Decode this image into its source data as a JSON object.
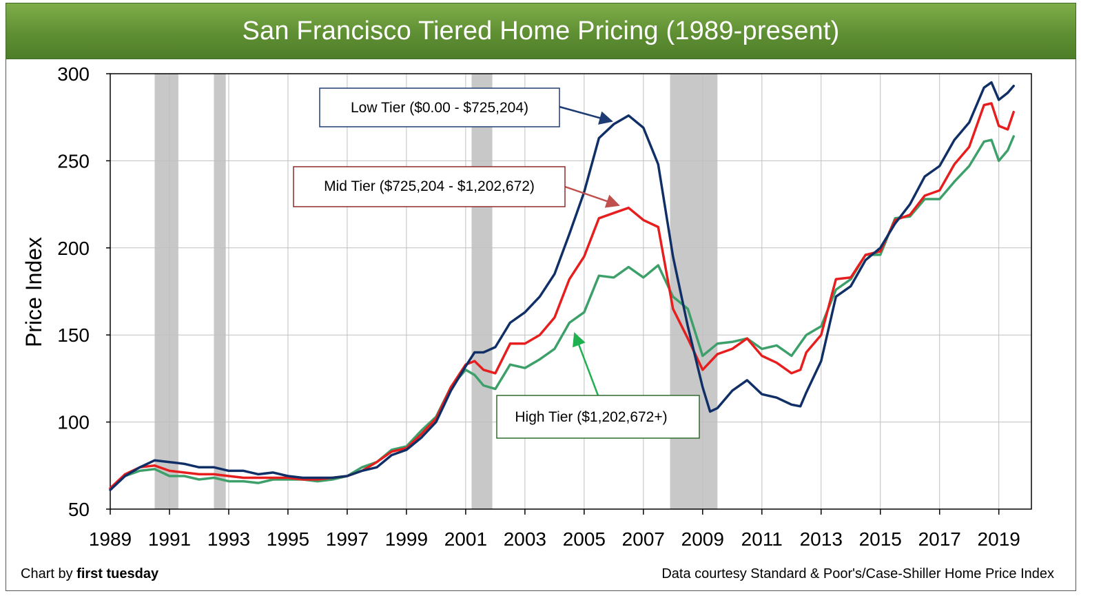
{
  "header": {
    "title": "San Francisco Tiered Home Pricing (1989-present)"
  },
  "footer": {
    "credit_prefix": "Chart by ",
    "credit_name": "first tuesday",
    "source": "Data courtesy Standard & Poor's/Case-Shiller Home Price Index"
  },
  "colors": {
    "title_bar": "#5f8f33",
    "low": "#0f2f66",
    "mid": "#e61e1e",
    "high": "#3da06a",
    "recession": "#c8c8c8",
    "grid": "#bfbfbf",
    "low_box_border": "#1f3b73",
    "mid_box_border": "#8b2a2a",
    "high_box_border": "#2f6b2f"
  },
  "chart_data": {
    "type": "line",
    "title": "San Francisco Tiered Home Pricing (1989-present)",
    "xlabel": "",
    "ylabel": "Price Index",
    "xlim": [
      1989,
      2020.1
    ],
    "ylim": [
      50,
      300
    ],
    "x_ticks": [
      "1989",
      "1991",
      "1993",
      "1995",
      "1997",
      "1999",
      "2001",
      "2003",
      "2005",
      "2007",
      "2009",
      "2011",
      "2013",
      "2015",
      "2017",
      "2019"
    ],
    "y_ticks": [
      "50",
      "100",
      "150",
      "200",
      "250",
      "300"
    ],
    "grid": true,
    "recessions": [
      [
        1990.5,
        1991.3
      ],
      [
        1992.5,
        1992.9
      ],
      [
        2001.2,
        2001.9
      ],
      [
        2007.9,
        2009.5
      ]
    ],
    "callouts": [
      {
        "series": "low",
        "label": "Low Tier ($0.00 - $725,204)"
      },
      {
        "series": "mid",
        "label": "Mid Tier ($725,204 - $1,202,672)"
      },
      {
        "series": "high",
        "label": "High Tier ($1,202,672+)"
      }
    ],
    "series": [
      {
        "name": "Low Tier ($0.00 - $725,204)",
        "key": "low",
        "points": [
          [
            1989,
            61
          ],
          [
            1989.5,
            69
          ],
          [
            1990,
            74
          ],
          [
            1990.5,
            78
          ],
          [
            1991,
            77
          ],
          [
            1991.5,
            76
          ],
          [
            1992,
            74
          ],
          [
            1992.5,
            74
          ],
          [
            1993,
            72
          ],
          [
            1993.5,
            72
          ],
          [
            1994,
            70
          ],
          [
            1994.5,
            71
          ],
          [
            1995,
            69
          ],
          [
            1995.5,
            68
          ],
          [
            1996,
            68
          ],
          [
            1996.5,
            68
          ],
          [
            1997,
            69
          ],
          [
            1997.5,
            72
          ],
          [
            1998,
            74
          ],
          [
            1998.5,
            81
          ],
          [
            1999,
            84
          ],
          [
            1999.5,
            91
          ],
          [
            2000,
            100
          ],
          [
            2000.5,
            118
          ],
          [
            2001,
            132
          ],
          [
            2001.3,
            140
          ],
          [
            2001.6,
            140
          ],
          [
            2002,
            143
          ],
          [
            2002.5,
            157
          ],
          [
            2003,
            163
          ],
          [
            2003.5,
            172
          ],
          [
            2004,
            185
          ],
          [
            2004.5,
            208
          ],
          [
            2005,
            232
          ],
          [
            2005.5,
            263
          ],
          [
            2006,
            271
          ],
          [
            2006.5,
            276
          ],
          [
            2007,
            269
          ],
          [
            2007.5,
            248
          ],
          [
            2008,
            195
          ],
          [
            2008.5,
            155
          ],
          [
            2009,
            120
          ],
          [
            2009.25,
            106
          ],
          [
            2009.5,
            108
          ],
          [
            2010,
            118
          ],
          [
            2010.5,
            124
          ],
          [
            2011,
            116
          ],
          [
            2011.5,
            114
          ],
          [
            2012,
            110
          ],
          [
            2012.3,
            109
          ],
          [
            2012.5,
            117
          ],
          [
            2013,
            135
          ],
          [
            2013.5,
            172
          ],
          [
            2014,
            178
          ],
          [
            2014.5,
            193
          ],
          [
            2015,
            200
          ],
          [
            2015.5,
            214
          ],
          [
            2016,
            225
          ],
          [
            2016.5,
            241
          ],
          [
            2017,
            247
          ],
          [
            2017.5,
            262
          ],
          [
            2018,
            272
          ],
          [
            2018.5,
            292
          ],
          [
            2018.75,
            295
          ],
          [
            2019,
            285
          ],
          [
            2019.3,
            289
          ],
          [
            2019.5,
            293
          ]
        ]
      },
      {
        "name": "Mid Tier ($725,204 - $1,202,672)",
        "key": "mid",
        "points": [
          [
            1989,
            62
          ],
          [
            1989.5,
            70
          ],
          [
            1990,
            74
          ],
          [
            1990.5,
            75
          ],
          [
            1991,
            72
          ],
          [
            1991.5,
            71
          ],
          [
            1992,
            70
          ],
          [
            1992.5,
            70
          ],
          [
            1993,
            69
          ],
          [
            1993.5,
            68
          ],
          [
            1994,
            68
          ],
          [
            1994.5,
            68
          ],
          [
            1995,
            68
          ],
          [
            1995.5,
            67
          ],
          [
            1996,
            67
          ],
          [
            1996.5,
            68
          ],
          [
            1997,
            69
          ],
          [
            1997.5,
            72
          ],
          [
            1998,
            77
          ],
          [
            1998.5,
            83
          ],
          [
            1999,
            85
          ],
          [
            1999.5,
            93
          ],
          [
            2000,
            102
          ],
          [
            2000.5,
            120
          ],
          [
            2001,
            133
          ],
          [
            2001.3,
            135
          ],
          [
            2001.6,
            130
          ],
          [
            2002,
            128
          ],
          [
            2002.5,
            145
          ],
          [
            2003,
            145
          ],
          [
            2003.5,
            150
          ],
          [
            2004,
            160
          ],
          [
            2004.5,
            182
          ],
          [
            2005,
            195
          ],
          [
            2005.5,
            217
          ],
          [
            2006,
            220
          ],
          [
            2006.5,
            223
          ],
          [
            2007,
            216
          ],
          [
            2007.5,
            212
          ],
          [
            2008,
            165
          ],
          [
            2008.5,
            148
          ],
          [
            2009,
            130
          ],
          [
            2009.5,
            139
          ],
          [
            2010,
            142
          ],
          [
            2010.5,
            148
          ],
          [
            2011,
            138
          ],
          [
            2011.5,
            134
          ],
          [
            2012,
            128
          ],
          [
            2012.3,
            130
          ],
          [
            2012.5,
            140
          ],
          [
            2013,
            150
          ],
          [
            2013.5,
            182
          ],
          [
            2014,
            183
          ],
          [
            2014.5,
            196
          ],
          [
            2015,
            198
          ],
          [
            2015.5,
            216
          ],
          [
            2016,
            219
          ],
          [
            2016.5,
            230
          ],
          [
            2017,
            233
          ],
          [
            2017.5,
            248
          ],
          [
            2018,
            258
          ],
          [
            2018.5,
            282
          ],
          [
            2018.75,
            283
          ],
          [
            2019,
            270
          ],
          [
            2019.3,
            268
          ],
          [
            2019.5,
            278
          ]
        ]
      },
      {
        "name": "High Tier ($1,202,672+)",
        "key": "high",
        "points": [
          [
            1989,
            62
          ],
          [
            1989.5,
            69
          ],
          [
            1990,
            72
          ],
          [
            1990.5,
            73
          ],
          [
            1991,
            69
          ],
          [
            1991.5,
            69
          ],
          [
            1992,
            67
          ],
          [
            1992.5,
            68
          ],
          [
            1993,
            66
          ],
          [
            1993.5,
            66
          ],
          [
            1994,
            65
          ],
          [
            1994.5,
            67
          ],
          [
            1995,
            67
          ],
          [
            1995.5,
            67
          ],
          [
            1996,
            66
          ],
          [
            1996.5,
            67
          ],
          [
            1997,
            69
          ],
          [
            1997.5,
            74
          ],
          [
            1998,
            77
          ],
          [
            1998.5,
            84
          ],
          [
            1999,
            86
          ],
          [
            1999.5,
            95
          ],
          [
            2000,
            103
          ],
          [
            2000.5,
            120
          ],
          [
            2001,
            130
          ],
          [
            2001.3,
            127
          ],
          [
            2001.6,
            121
          ],
          [
            2002,
            119
          ],
          [
            2002.5,
            133
          ],
          [
            2003,
            131
          ],
          [
            2003.5,
            136
          ],
          [
            2004,
            142
          ],
          [
            2004.5,
            157
          ],
          [
            2005,
            163
          ],
          [
            2005.5,
            184
          ],
          [
            2006,
            183
          ],
          [
            2006.5,
            189
          ],
          [
            2007,
            183
          ],
          [
            2007.5,
            190
          ],
          [
            2008,
            172
          ],
          [
            2008.5,
            165
          ],
          [
            2009,
            138
          ],
          [
            2009.5,
            145
          ],
          [
            2010,
            146
          ],
          [
            2010.5,
            148
          ],
          [
            2011,
            142
          ],
          [
            2011.5,
            144
          ],
          [
            2012,
            138
          ],
          [
            2012.5,
            150
          ],
          [
            2013,
            155
          ],
          [
            2013.5,
            176
          ],
          [
            2014,
            182
          ],
          [
            2014.5,
            196
          ],
          [
            2015,
            196
          ],
          [
            2015.5,
            217
          ],
          [
            2016,
            218
          ],
          [
            2016.5,
            228
          ],
          [
            2017,
            228
          ],
          [
            2017.5,
            238
          ],
          [
            2018,
            247
          ],
          [
            2018.5,
            261
          ],
          [
            2018.75,
            262
          ],
          [
            2019,
            250
          ],
          [
            2019.3,
            256
          ],
          [
            2019.5,
            264
          ]
        ]
      }
    ]
  }
}
